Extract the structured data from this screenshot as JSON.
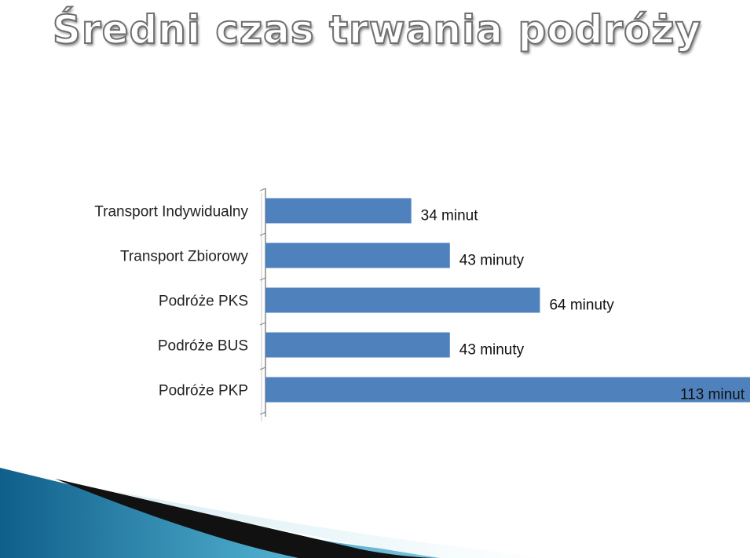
{
  "title": "Średni czas trwania podróży",
  "colors": {
    "bar": "#4f81bd",
    "axis": "#8a8a8a",
    "title_stroke": "#6f6f6f",
    "wave_blue": "#1d6f99",
    "wave_light": "#bfe2ef"
  },
  "chart_data": {
    "type": "bar",
    "orientation": "horizontal",
    "categories": [
      "Transport Indywidualny",
      "Transport Zbiorowy",
      "Podróże PKS",
      "Podróże BUS",
      "Podróże PKP"
    ],
    "values": [
      34,
      43,
      64,
      43,
      113
    ],
    "data_labels": [
      "34 minut",
      "43 minuty",
      "64 minuty",
      "43 minuty",
      "113 minut"
    ],
    "unit": "minuty",
    "xlim": [
      0,
      113
    ],
    "grid": false,
    "legend": "none"
  }
}
